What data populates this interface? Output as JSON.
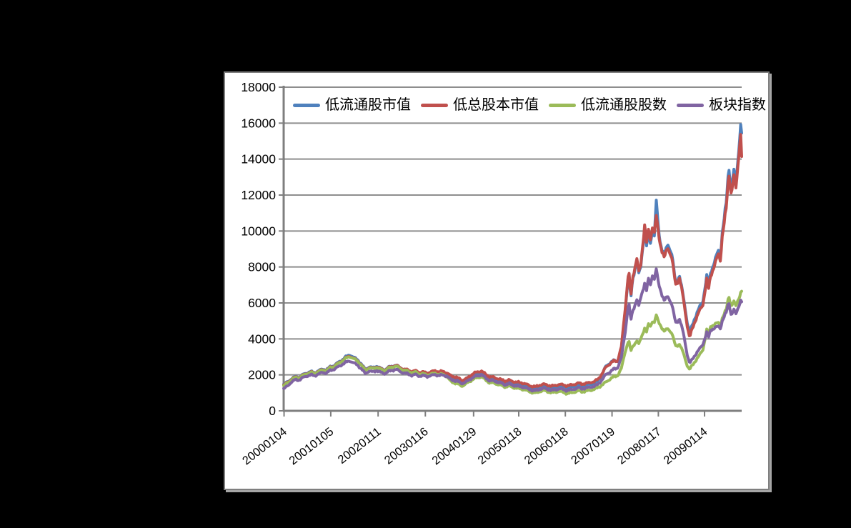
{
  "page": {
    "background_color": "#000000",
    "panel_background_color": "#ffffff",
    "panel_border_color": "#7f7f7f"
  },
  "chart_data": {
    "type": "line",
    "title": "",
    "xlabel": "",
    "ylabel": "",
    "grid": "horizontal",
    "legend_position": "top-inside",
    "gridline_color": "#8e8e8e",
    "axis_color": "#7f7f7f",
    "ylim": [
      0,
      18000
    ],
    "y_ticks": [
      0,
      2000,
      4000,
      6000,
      8000,
      10000,
      12000,
      14000,
      16000,
      18000
    ],
    "x_tick_labels": [
      "20000104",
      "20010105",
      "20020111",
      "20030116",
      "20040129",
      "20050118",
      "20060118",
      "20070119",
      "20080117",
      "20090114"
    ],
    "x_unit": "months since 2000-01",
    "x": [
      0,
      1,
      2,
      3,
      4,
      5,
      6,
      7,
      8,
      9,
      10,
      11,
      12,
      13,
      14,
      15,
      16,
      17,
      18,
      19,
      20,
      21,
      22,
      23,
      24,
      25,
      26,
      27,
      28,
      29,
      30,
      31,
      32,
      33,
      34,
      35,
      36,
      37,
      38,
      39,
      40,
      41,
      42,
      43,
      44,
      45,
      46,
      47,
      48,
      49,
      50,
      51,
      52,
      53,
      54,
      55,
      56,
      57,
      58,
      59,
      60,
      61,
      62,
      63,
      64,
      65,
      66,
      67,
      68,
      69,
      70,
      71,
      72,
      73,
      74,
      75,
      76,
      77,
      78,
      79,
      80,
      81,
      82,
      83,
      84,
      85,
      86,
      87,
      88,
      88.9,
      89.4,
      90,
      91,
      91.5,
      92,
      93,
      93.5,
      94,
      94.5,
      95,
      95.5,
      96,
      96.5,
      97,
      98,
      99,
      100,
      101,
      102,
      103,
      104,
      104.6,
      105,
      106,
      107,
      108,
      109,
      109.5,
      110,
      111,
      112,
      112.5,
      113,
      114,
      114.7,
      115.3,
      116,
      116.5,
      117,
      117.7,
      118
    ],
    "series": [
      {
        "name": "低流通股市值",
        "color": "#4F81BD",
        "values": [
          1450,
          1620,
          1780,
          1900,
          1870,
          2020,
          2110,
          2180,
          2120,
          2230,
          2320,
          2280,
          2450,
          2520,
          2680,
          2820,
          3000,
          3120,
          2980,
          2850,
          2600,
          2310,
          2440,
          2400,
          2480,
          2360,
          2280,
          2420,
          2480,
          2540,
          2400,
          2310,
          2260,
          2160,
          2210,
          2110,
          2100,
          2050,
          2110,
          2190,
          2090,
          2150,
          2050,
          1900,
          1820,
          1750,
          1620,
          1700,
          1850,
          2000,
          2080,
          2120,
          1950,
          1800,
          1780,
          1710,
          1650,
          1560,
          1620,
          1540,
          1500,
          1460,
          1420,
          1330,
          1260,
          1240,
          1330,
          1390,
          1340,
          1280,
          1320,
          1380,
          1340,
          1290,
          1330,
          1380,
          1440,
          1390,
          1430,
          1480,
          1520,
          1680,
          2010,
          2480,
          2650,
          2800,
          2750,
          3450,
          5600,
          7800,
          6200,
          7400,
          8400,
          7600,
          8000,
          10150,
          9200,
          9800,
          9300,
          10100,
          9700,
          11650,
          10300,
          9400,
          8600,
          9300,
          8700,
          7100,
          7500,
          6300,
          4900,
          4300,
          4600,
          5200,
          5700,
          6100,
          7500,
          6950,
          7700,
          8300,
          8900,
          8600,
          9900,
          11500,
          13640,
          12300,
          13300,
          12700,
          13900,
          15830,
          15400
        ]
      },
      {
        "name": "低总股本市值",
        "color": "#C0504D",
        "values": [
          1420,
          1590,
          1750,
          1870,
          1850,
          1990,
          2080,
          2150,
          2100,
          2200,
          2290,
          2250,
          2420,
          2490,
          2640,
          2780,
          2940,
          3050,
          2920,
          2800,
          2560,
          2280,
          2410,
          2370,
          2450,
          2340,
          2260,
          2400,
          2460,
          2530,
          2400,
          2310,
          2270,
          2180,
          2230,
          2140,
          2150,
          2100,
          2160,
          2240,
          2150,
          2210,
          2110,
          1960,
          1890,
          1820,
          1700,
          1780,
          1930,
          2090,
          2170,
          2210,
          2040,
          1890,
          1870,
          1800,
          1740,
          1650,
          1710,
          1630,
          1600,
          1560,
          1520,
          1430,
          1360,
          1340,
          1430,
          1480,
          1430,
          1370,
          1410,
          1470,
          1440,
          1390,
          1430,
          1480,
          1540,
          1490,
          1530,
          1580,
          1620,
          1760,
          2050,
          2430,
          2600,
          2780,
          2760,
          3550,
          5700,
          7900,
          6300,
          7500,
          8500,
          7700,
          8100,
          10350,
          9400,
          10000,
          9500,
          10300,
          9900,
          10800,
          10000,
          9300,
          8500,
          9100,
          8500,
          7000,
          7400,
          6200,
          4700,
          4050,
          4400,
          5000,
          5500,
          5900,
          7300,
          6800,
          7500,
          8100,
          8700,
          8400,
          9700,
          11200,
          13300,
          12000,
          13000,
          12400,
          13600,
          15430,
          14100
        ]
      },
      {
        "name": "低流通股股数",
        "color": "#9BBB59",
        "values": [
          1380,
          1560,
          1720,
          1850,
          1830,
          1970,
          2060,
          2130,
          2080,
          2180,
          2270,
          2230,
          2400,
          2470,
          2620,
          2760,
          2920,
          3020,
          2900,
          2780,
          2540,
          2260,
          2390,
          2350,
          2420,
          2310,
          2240,
          2370,
          2430,
          2490,
          2350,
          2260,
          2210,
          2110,
          2160,
          2050,
          2050,
          1990,
          2040,
          2100,
          2000,
          2050,
          1900,
          1650,
          1550,
          1480,
          1380,
          1500,
          1650,
          1780,
          1850,
          1900,
          1720,
          1570,
          1550,
          1480,
          1420,
          1330,
          1380,
          1300,
          1260,
          1220,
          1180,
          1090,
          1020,
          1000,
          1080,
          1130,
          1070,
          1010,
          1040,
          1090,
          1030,
          960,
          1000,
          1050,
          1110,
          1060,
          1100,
          1150,
          1190,
          1300,
          1430,
          1600,
          1750,
          1900,
          1950,
          2350,
          3300,
          3950,
          3310,
          3600,
          3900,
          3700,
          4000,
          4600,
          4400,
          4800,
          4700,
          5000,
          4900,
          5300,
          5000,
          4800,
          4400,
          4600,
          4300,
          3600,
          3700,
          3200,
          2500,
          2280,
          2450,
          2750,
          3050,
          3400,
          4500,
          4200,
          4700,
          4800,
          4900,
          4750,
          5150,
          5600,
          6430,
          5800,
          6050,
          5850,
          6150,
          6500,
          6630
        ]
      },
      {
        "name": "板块指数",
        "color": "#8064A2",
        "values": [
          1220,
          1380,
          1600,
          1730,
          1710,
          1850,
          1940,
          2000,
          1950,
          2050,
          2140,
          2100,
          2250,
          2310,
          2440,
          2570,
          2700,
          2780,
          2670,
          2550,
          2330,
          2080,
          2210,
          2170,
          2240,
          2140,
          2070,
          2190,
          2250,
          2310,
          2180,
          2100,
          2060,
          1970,
          2020,
          1930,
          1960,
          1910,
          1960,
          2020,
          1950,
          2000,
          1920,
          1750,
          1680,
          1620,
          1520,
          1600,
          1750,
          1880,
          1950,
          2000,
          1830,
          1690,
          1670,
          1600,
          1540,
          1450,
          1500,
          1420,
          1380,
          1340,
          1300,
          1210,
          1140,
          1120,
          1200,
          1250,
          1200,
          1140,
          1170,
          1230,
          1190,
          1130,
          1170,
          1220,
          1280,
          1230,
          1270,
          1320,
          1360,
          1480,
          1710,
          2020,
          2150,
          2320,
          2380,
          2950,
          4400,
          6100,
          5000,
          5600,
          6200,
          5800,
          6300,
          7100,
          6700,
          7300,
          7000,
          7600,
          7300,
          7850,
          7200,
          6800,
          6100,
          6400,
          5900,
          4900,
          5100,
          4300,
          3100,
          2620,
          2780,
          3100,
          3400,
          3700,
          4350,
          4100,
          4500,
          4600,
          4700,
          4600,
          5000,
          5450,
          6090,
          5300,
          5600,
          5400,
          5700,
          6100,
          6050
        ]
      }
    ]
  }
}
